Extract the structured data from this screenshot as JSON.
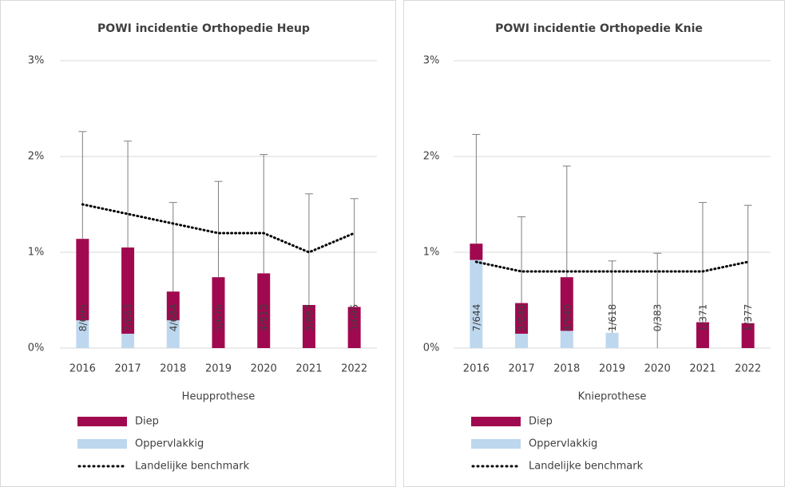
{
  "chart_data": [
    {
      "type": "bar",
      "title": "POWI incidentie Orthopedie Heup",
      "xlabel": "Heupprothese",
      "categories": [
        "2016",
        "2017",
        "2018",
        "2019",
        "2020",
        "2021",
        "2022"
      ],
      "series": [
        {
          "name": "Diep",
          "type": "bar",
          "color": "#a0094f",
          "values": [
            0.85,
            0.9,
            0.3,
            0.74,
            0.78,
            0.45,
            0.43
          ]
        },
        {
          "name": "Oppervlakkig",
          "type": "bar",
          "color": "#bdd7ee",
          "values": [
            0.29,
            0.15,
            0.29,
            0,
            0,
            0,
            0
          ]
        },
        {
          "name": "Landelijke benchmark",
          "type": "line",
          "color": "#000000",
          "values": [
            1.5,
            1.4,
            1.3,
            1.2,
            1.2,
            1.0,
            1.2
          ]
        }
      ],
      "error_upper": [
        2.26,
        2.16,
        1.52,
        1.74,
        2.02,
        1.61,
        1.56
      ],
      "bar_labels": [
        "8/695",
        "7/663",
        "4/684",
        "5/676",
        "4/513",
        "3/667",
        "3/695"
      ],
      "ylim": [
        0,
        3
      ],
      "yticks": [
        {
          "value": 0,
          "label": "0%"
        },
        {
          "value": 1,
          "label": "1%"
        },
        {
          "value": 2,
          "label": "2%"
        },
        {
          "value": 3,
          "label": "3%"
        }
      ],
      "grid": true
    },
    {
      "type": "bar",
      "title": "POWI incidentie Orthopedie Knie",
      "xlabel": "Knieprothese",
      "categories": [
        "2016",
        "2017",
        "2018",
        "2019",
        "2020",
        "2021",
        "2022"
      ],
      "series": [
        {
          "name": "Diep",
          "type": "bar",
          "color": "#a0094f",
          "values": [
            0.17,
            0.32,
            0.56,
            0,
            0,
            0.27,
            0.26
          ]
        },
        {
          "name": "Oppervlakkig",
          "type": "bar",
          "color": "#bdd7ee",
          "values": [
            0.92,
            0.15,
            0.18,
            0.16,
            0,
            0,
            0
          ]
        },
        {
          "name": "Landelijke benchmark",
          "type": "line",
          "color": "#000000",
          "values": [
            0.9,
            0.8,
            0.8,
            0.8,
            0.8,
            0.8,
            0.9
          ]
        }
      ],
      "error_upper": [
        2.23,
        1.37,
        1.9,
        0.91,
        0.99,
        1.52,
        1.49
      ],
      "bar_labels": [
        "7/644",
        "3/640",
        "4/540",
        "1/618",
        "0/383",
        "1/371",
        "1/377"
      ],
      "ylim": [
        0,
        3
      ],
      "yticks": [
        {
          "value": 0,
          "label": "0%"
        },
        {
          "value": 1,
          "label": "1%"
        },
        {
          "value": 2,
          "label": "2%"
        },
        {
          "value": 3,
          "label": "3%"
        }
      ],
      "grid": true
    }
  ]
}
